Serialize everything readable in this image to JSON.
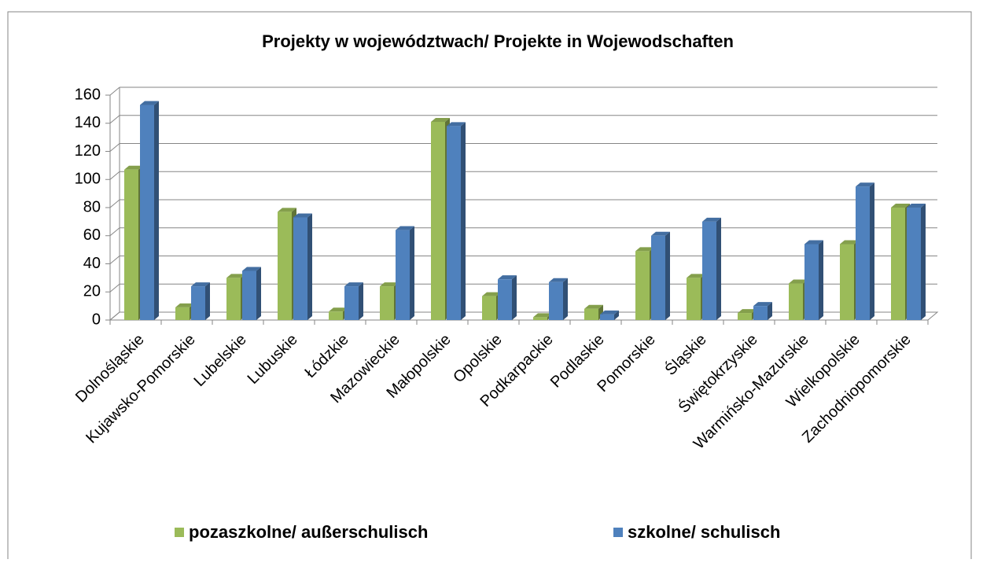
{
  "chart_data": {
    "type": "bar3d",
    "title": "Projekty w województwach/ Projekte in Wojewodschaften",
    "categories": [
      "Dolnośląskie",
      "Kujawsko-Pomorskie",
      "Lubelskie",
      "Lubuskie",
      "Łódzkie",
      "Mazowieckie",
      "Małopolskie",
      "Opolskie",
      "Podkarpackie",
      "Podlaskie",
      "Pomorskie",
      "Śląskie",
      "Świętokrzyskie",
      "Warmińsko-Mazurskie",
      "Wielkopolskie",
      "Zachodniopomorskie"
    ],
    "series": [
      {
        "name": "pozaszkolne/ außerschulisch",
        "color": "#9bbb59",
        "values": [
          107,
          9,
          30,
          77,
          6,
          24,
          141,
          17,
          2,
          8,
          49,
          30,
          5,
          26,
          54,
          80
        ]
      },
      {
        "name": "szkolne/ schulisch",
        "color": "#4f81bd",
        "values": [
          153,
          24,
          35,
          73,
          24,
          64,
          138,
          29,
          27,
          4,
          60,
          70,
          10,
          54,
          95,
          80
        ]
      }
    ],
    "ylim": [
      0,
      160
    ],
    "yticks": [
      0,
      20,
      40,
      60,
      80,
      100,
      120,
      140,
      160
    ],
    "grid": true,
    "legend": "bottom"
  }
}
